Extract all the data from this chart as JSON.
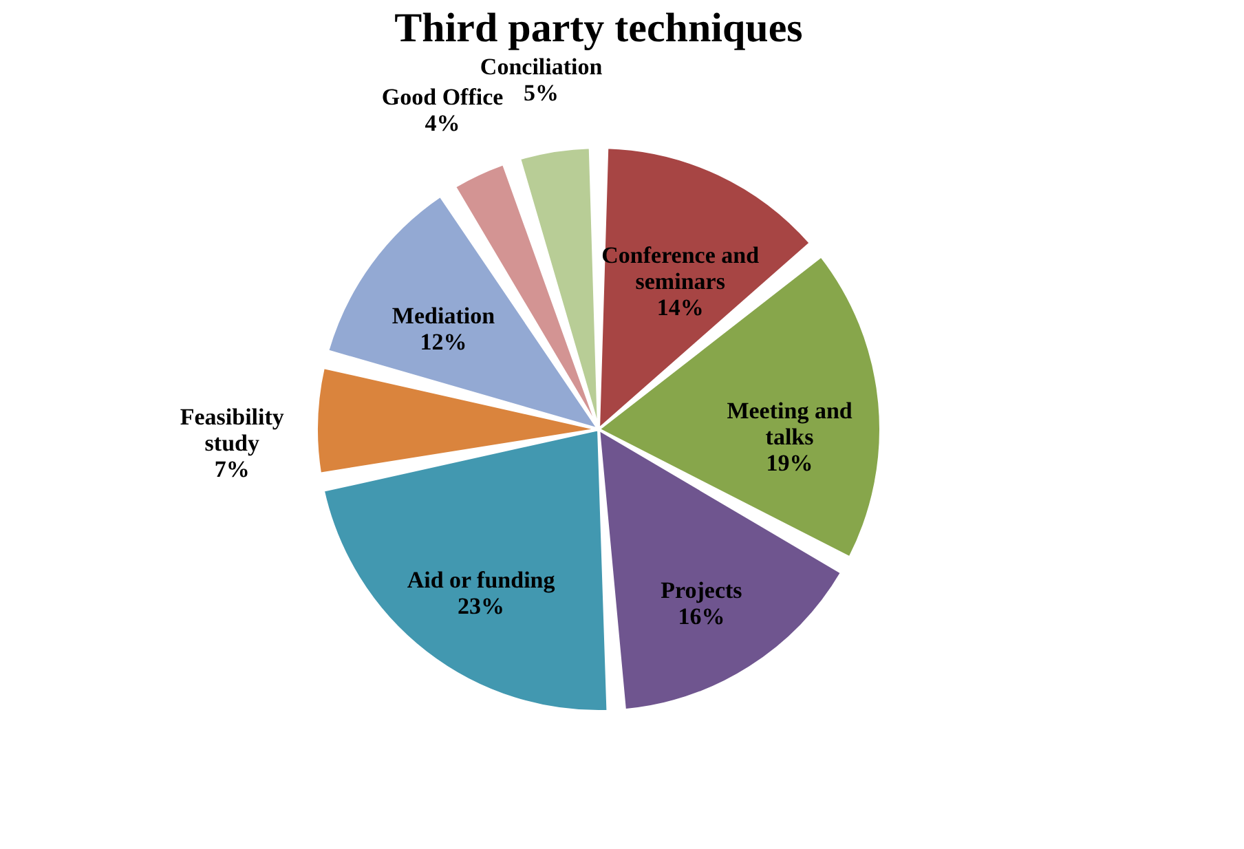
{
  "chart_data": {
    "type": "pie",
    "title": "Third party techniques",
    "categories": [
      "Conference and seminars",
      "Meeting and talks",
      "Projects",
      "Aid or funding",
      "Feasibility study",
      "Mediation",
      "Good Office",
      "Conciliation"
    ],
    "values": [
      14,
      19,
      16,
      23,
      7,
      12,
      4,
      5
    ],
    "value_labels": [
      "14%",
      "19%",
      "16%",
      "23%",
      "7%",
      "12%",
      "4%",
      "5%"
    ],
    "colors": [
      "#a74544",
      "#87a64b",
      "#6f558f",
      "#4298b0",
      "#da843d",
      "#93a9d3",
      "#d39493",
      "#b8cd96"
    ],
    "legend": false
  }
}
